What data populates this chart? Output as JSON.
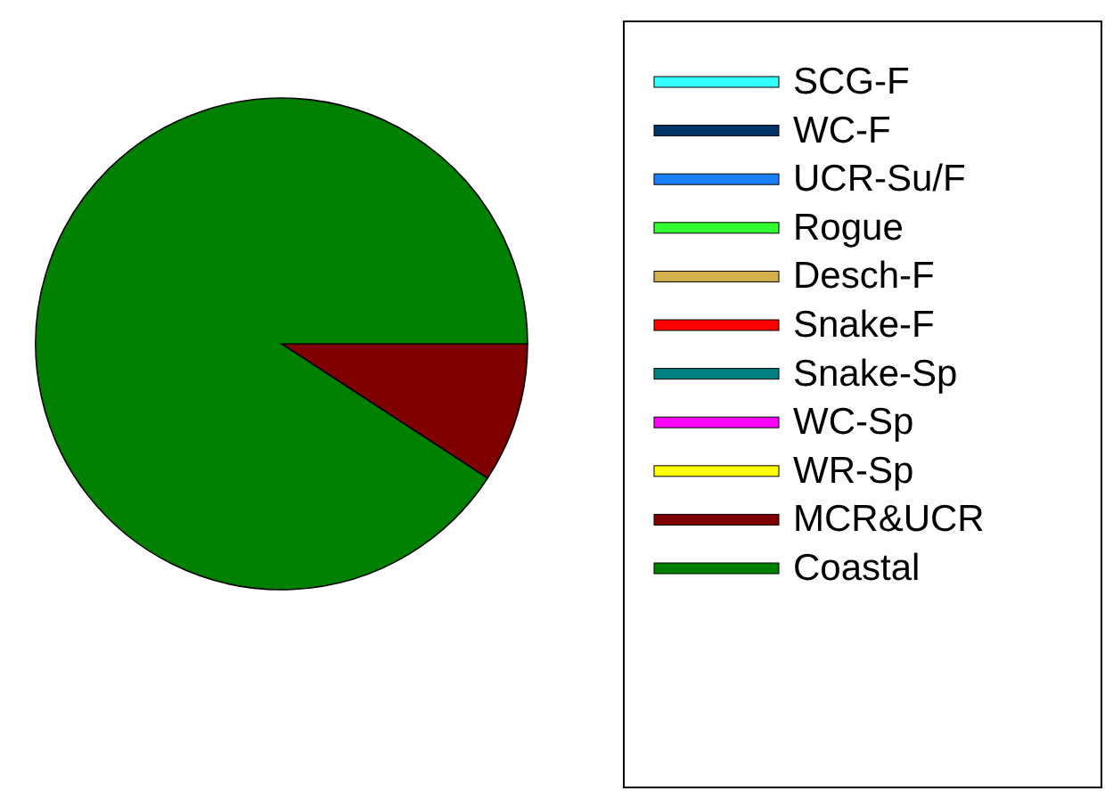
{
  "chart_data": {
    "type": "pie",
    "categories": [
      "SCG-F",
      "WC-F",
      "UCR-Su/F",
      "Rogue",
      "Desch-F",
      "Snake-F",
      "Snake-Sp",
      "WC-Sp",
      "WR-Sp",
      "MCR&UCR",
      "Coastal"
    ],
    "values": [
      0,
      0,
      0,
      0,
      0,
      0,
      0,
      0,
      0,
      9.2,
      90.8
    ],
    "colors": [
      "#33ffff",
      "#003366",
      "#1a80ff",
      "#33ff33",
      "#d4b04a",
      "#ff0000",
      "#008080",
      "#ff00ff",
      "#ffff00",
      "#800000",
      "#008000"
    ],
    "legend": "right"
  }
}
